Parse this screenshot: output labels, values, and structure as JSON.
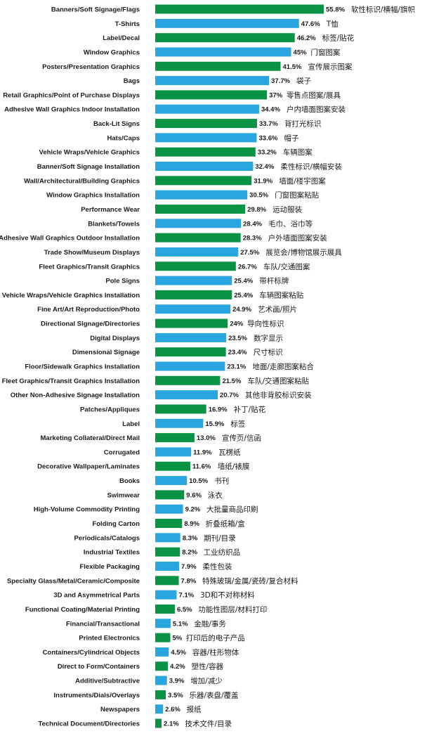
{
  "chart_data": {
    "type": "bar",
    "orientation": "horizontal",
    "value_unit": "%",
    "colors": {
      "green": "#0a9345",
      "blue": "#29a6df"
    },
    "series": [
      {
        "values": [
          55.8,
          47.6,
          46.2,
          45,
          41.5,
          37.7,
          37,
          34.4,
          33.7,
          33.6,
          33.2,
          32.4,
          31.9,
          30.5,
          29.8,
          28.4,
          28.3,
          27.5,
          26.7,
          25.4,
          25.4,
          24.9,
          24,
          23.5,
          23.4,
          23.1,
          21.5,
          20.7,
          16.9,
          15.9,
          13.0,
          11.9,
          11.6,
          10.5,
          9.6,
          9.2,
          8.9,
          8.3,
          8.2,
          7.9,
          7.8,
          7.1,
          6.5,
          5.1,
          5,
          4.5,
          4.2,
          3.9,
          3.5,
          2.6,
          2.1
        ],
        "value_labels": [
          "55.8%",
          "47.6%",
          "46.2%",
          "45%",
          "41.5%",
          "37.7%",
          "37%",
          "34.4%",
          "33.7%",
          "33.6%",
          "33.2%",
          "32.4%",
          "31.9%",
          "30.5%",
          "29.8%",
          "28.4%",
          "28.3%",
          "27.5%",
          "26.7%",
          "25.4%",
          "25.4%",
          "24.9%",
          "24%",
          "23.5%",
          "23.4%",
          "23.1%",
          "21.5%",
          "20.7%",
          "16.9%",
          "15.9%",
          "13.0%",
          "11.9%",
          "11.6%",
          "10.5%",
          "9.6%",
          "9.2%",
          "8.9%",
          "8.3%",
          "8.2%",
          "7.9%",
          "7.8%",
          "7.1%",
          "6.5%",
          "5.1%",
          "5%",
          "4.5%",
          "4.2%",
          "3.9%",
          "3.5%",
          "2.6%",
          "2.1%"
        ]
      }
    ],
    "categories": [
      "Banners/Soft Signage/Flags",
      "T-Shirts",
      "Label/Decal",
      "Window Graphics",
      "Posters/Presentation Graphics",
      "Bags",
      "Retail Graphics/Point of Purchase Displays",
      "Adhesive Wall Graphics Indoor Installation",
      "Back-Lit Signs",
      "Hats/Caps",
      "Vehicle Wraps/Vehicle Graphics",
      "Banner/Soft Signage Installation",
      "Wall/Architectural/Building Graphics",
      "Window Graphics Installation",
      "Performance Wear",
      "Blankets/Towels",
      "Adhesive Wall Graphics Outdoor Installation",
      "Trade Show/Museum Displays",
      "Fleet Graphics/Transit Graphics",
      "Pole Signs",
      "Vehicle Wraps/Vehicle Graphics Installation",
      "Fine Art/Art Reproduction/Photo",
      "Directional Signage/Directories",
      "Digital Displays",
      "Dimensional Signage",
      "Floor/Sidewalk Graphics Installation",
      "Fleet Graphics/Transit Graphics Installation",
      "Other Non-Adhesive Signage Installation",
      "Patches/Appliques",
      "Label",
      "Marketing Collateral/Direct Mail",
      "Corrugated",
      "Decorative Wallpaper/Laminates",
      "Books",
      "Swimwear",
      "High-Volume Commodity Printing",
      "Folding Carton",
      "Periodicals/Catalogs",
      "Industrial Textiles",
      "Flexible Packaging",
      "Specialty Glass/Metal/Ceramic/Composite",
      "3D and Asymmetrical Parts",
      "Functional Coating/Material Printing",
      "Financial/Transactional",
      "Printed Electronics",
      "Containers/Cylindrical Objects",
      "Direct to Form/Containers",
      "Additive/Subtractive",
      "Instruments/Dials/Overlays",
      "Newspapers",
      "Technical Document/Directories"
    ],
    "categories_zh": [
      "软性标识/横幅/旗帜",
      "T恤",
      "标签/贴花",
      "门窗图案",
      "宣传展示图案",
      "袋子",
      "零售点图案/展具",
      "户内墙面图案安装",
      "背打光标识",
      "帽子",
      "车辆图案",
      "柔性标识/横幅安装",
      "墙面/楼宇图案",
      "门窗图案粘贴",
      "运动服装",
      "毛巾、浴巾等",
      "户外墙面图案安装",
      "展览会/博物馆展示展具",
      "车队/交通图案",
      "带杆标牌",
      "车辆图案粘贴",
      "艺术画/照片",
      "导向性标识",
      "数字显示",
      "尺寸标识",
      "地面/走廊图案粘合",
      "车队/交通图案粘贴",
      "其他非背胶标识安装",
      "补丁/贴花",
      "标签",
      "宣传页/信函",
      "瓦楞纸",
      "墙纸/裱膜",
      "书刊",
      "泳衣",
      "大批量商品印刷",
      "折叠纸箱/盒",
      "期刊/目录",
      "工业纺织品",
      "柔性包装",
      "特殊玻璃/金属/瓷砖/复合材料",
      "3D和不对称材料",
      "功能性图层/材料打印",
      "金融/事务",
      "打印后的电子产品",
      "容器/柱形物体",
      "塑性/容器",
      "增加/减少",
      "乐器/表盘/覆盖",
      "报纸",
      "技术文件/目录"
    ],
    "bar_colors": [
      "green",
      "blue",
      "green",
      "blue",
      "green",
      "blue",
      "green",
      "blue",
      "green",
      "blue",
      "green",
      "blue",
      "green",
      "blue",
      "green",
      "blue",
      "green",
      "blue",
      "green",
      "blue",
      "green",
      "blue",
      "green",
      "blue",
      "green",
      "blue",
      "green",
      "blue",
      "green",
      "blue",
      "green",
      "blue",
      "green",
      "blue",
      "green",
      "blue",
      "green",
      "blue",
      "green",
      "blue",
      "green",
      "blue",
      "green",
      "blue",
      "green",
      "blue",
      "green",
      "blue",
      "green",
      "blue",
      "green"
    ],
    "title": "",
    "xlabel": "",
    "ylabel": "",
    "xlim": [
      0,
      55.8
    ],
    "grid": false,
    "legend": "none"
  }
}
